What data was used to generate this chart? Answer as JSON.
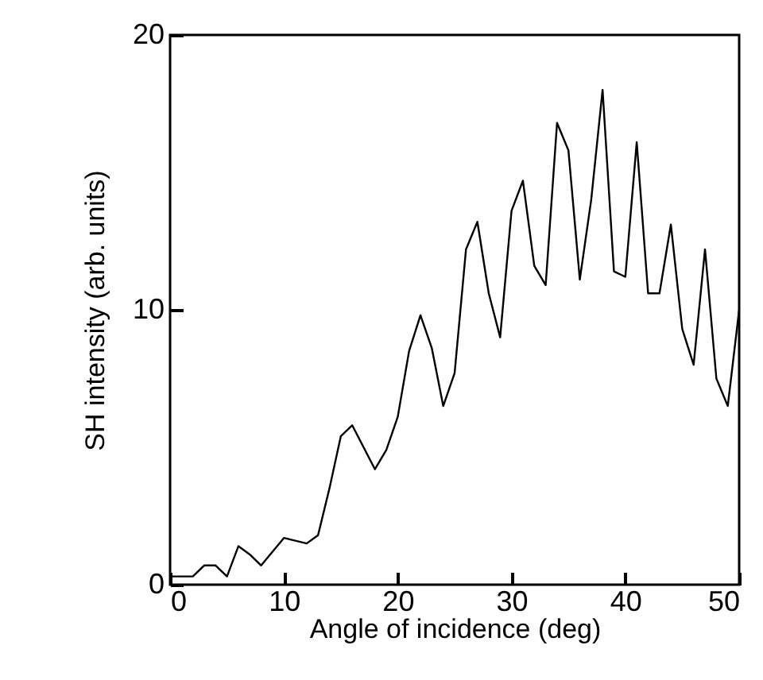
{
  "chart_data": {
    "type": "line",
    "xlabel": "Angle of incidence (deg)",
    "ylabel": "SH intensity (arb. units)",
    "x": [
      0,
      1,
      2,
      3,
      4,
      5,
      6,
      7,
      8,
      9,
      10,
      11,
      12,
      13,
      14,
      15,
      16,
      17,
      18,
      19,
      20,
      21,
      22,
      23,
      24,
      25,
      26,
      27,
      28,
      29,
      30,
      31,
      32,
      33,
      34,
      35,
      36,
      37,
      38,
      39,
      40,
      41,
      42,
      43,
      44,
      45,
      46,
      47,
      48,
      49,
      50
    ],
    "series": [
      {
        "color": "#000000",
        "values": [
          0.3,
          0.3,
          0.3,
          0.7,
          0.7,
          0.3,
          1.4,
          1.1,
          0.7,
          1.2,
          1.7,
          1.6,
          1.5,
          1.8,
          3.5,
          5.4,
          5.8,
          5.0,
          4.2,
          4.9,
          6.1,
          8.5,
          9.8,
          8.6,
          6.5,
          7.7,
          12.2,
          13.2,
          10.6,
          9.0,
          13.6,
          14.7,
          11.6,
          10.9,
          16.8,
          15.8,
          11.1,
          14.0,
          18.0,
          11.4,
          11.2,
          16.1,
          10.6,
          10.6,
          13.1,
          9.3,
          8.0,
          12.2,
          7.5,
          6.5,
          10.0
        ]
      }
    ],
    "xlim": [
      0,
      50
    ],
    "xticks": [
      0,
      10,
      20,
      30,
      40,
      50
    ],
    "ylim": [
      0,
      20
    ],
    "yticks": [
      0,
      10,
      20
    ],
    "grid": false
  }
}
